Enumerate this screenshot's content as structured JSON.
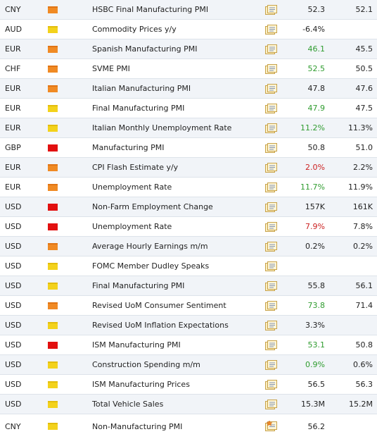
{
  "rows": [
    {
      "currency": "CNY",
      "impact": "medium",
      "event": "HSBC Final Manufacturing PMI",
      "actual": "52.3",
      "actual_color": "plain",
      "forecast": "52.1"
    },
    {
      "currency": "AUD",
      "impact": "low",
      "event": "Commodity Prices y/y",
      "actual": "-6.4%",
      "actual_color": "plain",
      "forecast": ""
    },
    {
      "currency": "EUR",
      "impact": "medium",
      "event": "Spanish Manufacturing PMI",
      "actual": "46.1",
      "actual_color": "green",
      "forecast": "45.5"
    },
    {
      "currency": "CHF",
      "impact": "medium",
      "event": "SVME PMI",
      "actual": "52.5",
      "actual_color": "green",
      "forecast": "50.5"
    },
    {
      "currency": "EUR",
      "impact": "medium",
      "event": "Italian Manufacturing PMI",
      "actual": "47.8",
      "actual_color": "plain",
      "forecast": "47.6"
    },
    {
      "currency": "EUR",
      "impact": "low",
      "event": "Final Manufacturing PMI",
      "actual": "47.9",
      "actual_color": "green",
      "forecast": "47.5"
    },
    {
      "currency": "EUR",
      "impact": "low",
      "event": "Italian Monthly Unemployment Rate",
      "actual": "11.2%",
      "actual_color": "green",
      "forecast": "11.3%"
    },
    {
      "currency": "GBP",
      "impact": "high",
      "event": "Manufacturing PMI",
      "actual": "50.8",
      "actual_color": "plain",
      "forecast": "51.0"
    },
    {
      "currency": "EUR",
      "impact": "medium",
      "event": "CPI Flash Estimate y/y",
      "actual": "2.0%",
      "actual_color": "red",
      "forecast": "2.2%"
    },
    {
      "currency": "EUR",
      "impact": "medium",
      "event": "Unemployment Rate",
      "actual": "11.7%",
      "actual_color": "green",
      "forecast": "11.9%"
    },
    {
      "currency": "USD",
      "impact": "high",
      "event": "Non-Farm Employment Change",
      "actual": "157K",
      "actual_color": "plain",
      "forecast": "161K"
    },
    {
      "currency": "USD",
      "impact": "high",
      "event": "Unemployment Rate",
      "actual": "7.9%",
      "actual_color": "red",
      "forecast": "7.8%"
    },
    {
      "currency": "USD",
      "impact": "medium",
      "event": "Average Hourly Earnings m/m",
      "actual": "0.2%",
      "actual_color": "plain",
      "forecast": "0.2%"
    },
    {
      "currency": "USD",
      "impact": "low",
      "event": "FOMC Member Dudley Speaks",
      "actual": "",
      "actual_color": "plain",
      "forecast": ""
    },
    {
      "currency": "USD",
      "impact": "low",
      "event": "Final Manufacturing PMI",
      "actual": "55.8",
      "actual_color": "plain",
      "forecast": "56.1"
    },
    {
      "currency": "USD",
      "impact": "medium",
      "event": "Revised UoM Consumer Sentiment",
      "actual": "73.8",
      "actual_color": "green",
      "forecast": "71.4"
    },
    {
      "currency": "USD",
      "impact": "low",
      "event": "Revised UoM Inflation Expectations",
      "actual": "3.3%",
      "actual_color": "plain",
      "forecast": ""
    },
    {
      "currency": "USD",
      "impact": "high",
      "event": "ISM Manufacturing PMI",
      "actual": "53.1",
      "actual_color": "green",
      "forecast": "50.8"
    },
    {
      "currency": "USD",
      "impact": "low",
      "event": "Construction Spending m/m",
      "actual": "0.9%",
      "actual_color": "green",
      "forecast": "0.6%"
    },
    {
      "currency": "USD",
      "impact": "low",
      "event": "ISM Manufacturing Prices",
      "actual": "56.5",
      "actual_color": "plain",
      "forecast": "56.3"
    },
    {
      "currency": "USD",
      "impact": "low",
      "event": "Total Vehicle Sales",
      "actual": "15.3M",
      "actual_color": "plain",
      "forecast": "15.2M"
    },
    {
      "currency": "CNY",
      "impact": "low",
      "event": "Non-Manufacturing PMI",
      "actual": "56.2",
      "actual_color": "plain",
      "forecast": "",
      "detail_icon": "detail-star-icon"
    }
  ],
  "colors": {
    "row_alt": "#f1f4f8",
    "border": "#dde3ea",
    "better": "#2f9c2f",
    "worse": "#cc2222",
    "impact_low": "#f3d21c",
    "impact_medium": "#f08a24",
    "impact_high": "#e21010"
  }
}
